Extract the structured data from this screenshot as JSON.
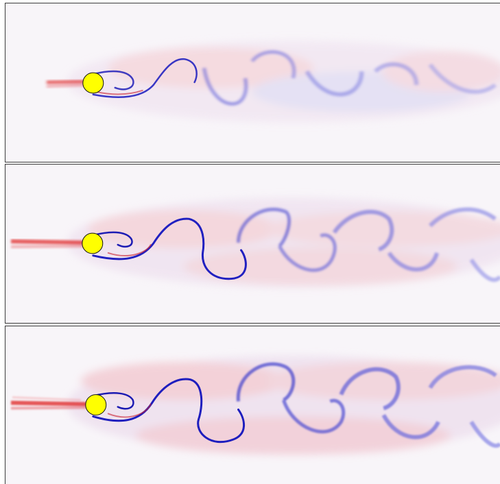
{
  "figure": {
    "panels": [
      {
        "id": "panel-1",
        "obstacle": "circular-cylinder",
        "wake": "vortex-street-weak"
      },
      {
        "id": "panel-2",
        "obstacle": "circular-cylinder",
        "wake": "vortex-street-medium"
      },
      {
        "id": "panel-3",
        "obstacle": "circular-cylinder",
        "wake": "vortex-street-strong"
      }
    ],
    "colors": {
      "positive_vorticity": "#e03030",
      "negative_vorticity": "#2a2ad0",
      "obstacle": "#ffff00",
      "background": "#f7f3f8"
    }
  }
}
